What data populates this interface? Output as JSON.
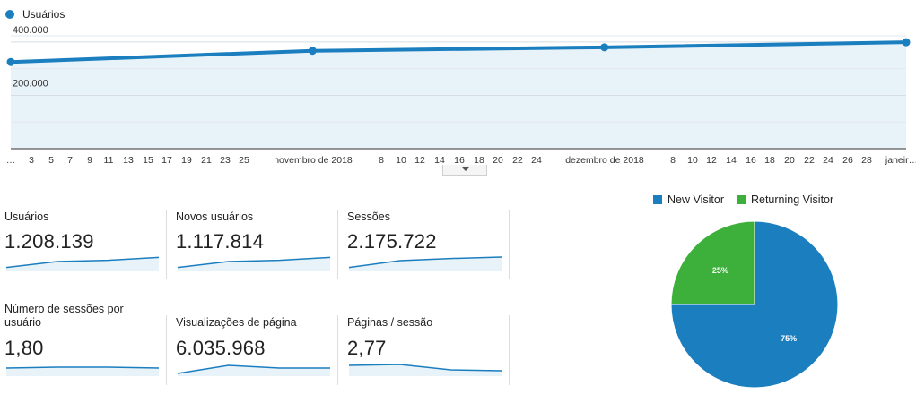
{
  "legend": {
    "series_label": "Usuários",
    "color": "#1a7ebf"
  },
  "chart_data": [
    {
      "type": "area",
      "series": [
        {
          "name": "Usuários",
          "values": [
            325000,
            367000,
            380000,
            399000
          ]
        }
      ],
      "x": [
        "2018-10-01",
        "2018-11-01",
        "2018-12-01",
        "2019-01-01"
      ],
      "ylim": [
        0,
        450000
      ],
      "yticks": [
        "200.000",
        "400.000"
      ],
      "ytick_values": [
        200000,
        400000
      ],
      "xticks": [
        "…",
        "3",
        "5",
        "7",
        "9",
        "11",
        "13",
        "15",
        "17",
        "19",
        "21",
        "23",
        "25",
        "novembro de 2018",
        "8",
        "10",
        "12",
        "14",
        "16",
        "18",
        "20",
        "22",
        "24",
        "dezembro de 2018",
        "8",
        "10",
        "12",
        "14",
        "16",
        "18",
        "20",
        "22",
        "24",
        "26",
        "28",
        "janeir…"
      ],
      "grid": true,
      "colors": {
        "line": "#1a7ebf",
        "fill": "#e8f2f9"
      }
    },
    {
      "type": "pie",
      "categories": [
        "New Visitor",
        "Returning Visitor"
      ],
      "values": [
        75,
        25
      ],
      "labels": [
        "75%",
        "25%"
      ],
      "colors": [
        "#1a7ebf",
        "#3daf3b"
      ],
      "legend_position": "top"
    }
  ],
  "metrics": [
    {
      "label": "Usuários",
      "value": "1.208.139",
      "spark": [
        0.22,
        0.55,
        0.62,
        0.78
      ]
    },
    {
      "label": "Novos usuários",
      "value": "1.117.814",
      "spark": [
        0.22,
        0.55,
        0.62,
        0.78
      ]
    },
    {
      "label": "Sessões",
      "value": "2.175.722",
      "spark": [
        0.22,
        0.6,
        0.72,
        0.8
      ]
    },
    {
      "label": "Número de sessões por usuário",
      "value": "1,80",
      "spark": [
        0.45,
        0.5,
        0.5,
        0.45
      ]
    },
    {
      "label": "Visualizações de página",
      "value": "6.035.968",
      "spark": [
        0.15,
        0.6,
        0.45,
        0.45
      ]
    },
    {
      "label": "Páginas / sessão",
      "value": "2,77",
      "spark": [
        0.6,
        0.65,
        0.35,
        0.3
      ]
    }
  ]
}
